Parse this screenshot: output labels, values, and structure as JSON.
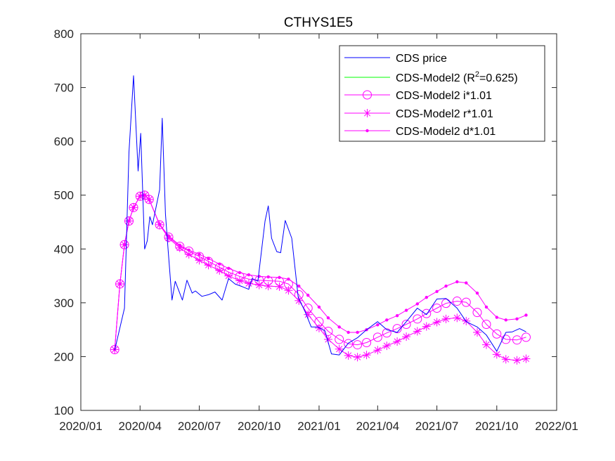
{
  "chart_data": {
    "type": "line",
    "title": "CTHYS1E5",
    "xlabel": "",
    "ylabel": "",
    "x_tick_labels": [
      "2020/01",
      "2020/04",
      "2020/07",
      "2020/10",
      "2021/01",
      "2021/04",
      "2021/07",
      "2021/10",
      "2022/01"
    ],
    "y_tick_labels": [
      "100",
      "200",
      "300",
      "400",
      "500",
      "600",
      "700",
      "800"
    ],
    "ylim": [
      100,
      800
    ],
    "xlim": [
      "2020-01-01",
      "2022-01-01"
    ],
    "grid": false,
    "legend_position": "top-right",
    "colors": {
      "cds_price": "#0000ff",
      "model": "#00ff00",
      "variants": "#ff00ff"
    },
    "series": [
      {
        "key": "cds",
        "name": "CDS price",
        "marker": "none",
        "x": [
          "2020-02-22",
          "2020-03-08",
          "2020-03-15",
          "2020-03-22",
          "2020-03-29",
          "2020-04-02",
          "2020-04-08",
          "2020-04-12",
          "2020-04-16",
          "2020-04-20",
          "2020-04-26",
          "2020-05-01",
          "2020-05-05",
          "2020-05-10",
          "2020-05-14",
          "2020-05-20",
          "2020-05-25",
          "2020-06-05",
          "2020-06-12",
          "2020-06-20",
          "2020-06-25",
          "2020-07-05",
          "2020-07-15",
          "2020-07-25",
          "2020-08-05",
          "2020-08-15",
          "2020-08-25",
          "2020-09-05",
          "2020-09-15",
          "2020-09-20",
          "2020-09-29",
          "2020-10-10",
          "2020-10-15",
          "2020-10-20",
          "2020-10-28",
          "2020-11-03",
          "2020-11-10",
          "2020-11-20",
          "2020-11-30",
          "2020-12-10",
          "2020-12-20",
          "2020-12-30",
          "2021-01-10",
          "2021-01-20",
          "2021-02-01",
          "2021-02-15",
          "2021-03-01",
          "2021-03-15",
          "2021-04-01",
          "2021-04-15",
          "2021-05-01",
          "2021-05-15",
          "2021-06-01",
          "2021-06-15",
          "2021-07-01",
          "2021-07-15",
          "2021-08-01",
          "2021-08-15",
          "2021-09-01",
          "2021-09-15",
          "2021-10-01",
          "2021-10-15",
          "2021-10-25",
          "2021-11-05",
          "2021-11-15"
        ],
        "y": [
          212,
          290,
          580,
          722,
          545,
          615,
          400,
          415,
          460,
          445,
          480,
          510,
          643,
          465,
          400,
          305,
          340,
          305,
          342,
          318,
          322,
          312,
          315,
          320,
          305,
          345,
          335,
          330,
          325,
          345,
          340,
          452,
          480,
          420,
          395,
          393,
          453,
          420,
          310,
          285,
          255,
          255,
          248,
          205,
          203,
          225,
          235,
          250,
          265,
          250,
          245,
          265,
          290,
          278,
          307,
          308,
          290,
          265,
          255,
          240,
          210,
          245,
          246,
          252,
          246
        ]
      },
      {
        "key": "model",
        "name": "CDS-Model2 (R²=0.625)",
        "name_base": "CDS-Model2 (R",
        "name_sup": "2",
        "name_tail": "=0.625)",
        "marker": "none",
        "x": [],
        "y": []
      },
      {
        "key": "i",
        "name": "CDS-Model2 i*1.01",
        "marker": "circle",
        "x": [
          "2020-02-22",
          "2020-03-01",
          "2020-03-08",
          "2020-03-15",
          "2020-03-22",
          "2020-04-01",
          "2020-04-08",
          "2020-04-15",
          "2020-05-01",
          "2020-05-15",
          "2020-06-01",
          "2020-06-15",
          "2020-07-01",
          "2020-07-15",
          "2020-08-01",
          "2020-08-15",
          "2020-09-01",
          "2020-09-15",
          "2020-10-01",
          "2020-10-15",
          "2020-11-01",
          "2020-11-15",
          "2020-12-01",
          "2020-12-15",
          "2021-01-01",
          "2021-01-15",
          "2021-02-01",
          "2021-02-15",
          "2021-03-01",
          "2021-03-15",
          "2021-04-01",
          "2021-04-15",
          "2021-05-01",
          "2021-05-15",
          "2021-06-01",
          "2021-06-15",
          "2021-07-01",
          "2021-07-15",
          "2021-08-01",
          "2021-08-15",
          "2021-09-01",
          "2021-09-15",
          "2021-10-01",
          "2021-10-15",
          "2021-11-01",
          "2021-11-15"
        ],
        "y": [
          213,
          335,
          408,
          452,
          477,
          498,
          500,
          492,
          445,
          422,
          405,
          396,
          386,
          377,
          366,
          357,
          349,
          344,
          342,
          341,
          340,
          335,
          315,
          290,
          265,
          247,
          232,
          224,
          222,
          226,
          236,
          244,
          252,
          260,
          270,
          280,
          290,
          299,
          303,
          301,
          282,
          260,
          242,
          232,
          231,
          236
        ]
      },
      {
        "key": "r",
        "name": "CDS-Model2 r*1.01",
        "marker": "star",
        "x": [
          "2020-02-22",
          "2020-03-01",
          "2020-03-08",
          "2020-03-15",
          "2020-03-22",
          "2020-04-01",
          "2020-04-08",
          "2020-04-15",
          "2020-05-01",
          "2020-05-15",
          "2020-06-01",
          "2020-06-15",
          "2020-07-01",
          "2020-07-15",
          "2020-08-01",
          "2020-08-15",
          "2020-09-01",
          "2020-09-15",
          "2020-10-01",
          "2020-10-15",
          "2020-11-01",
          "2020-11-15",
          "2020-12-01",
          "2020-12-15",
          "2021-01-01",
          "2021-01-15",
          "2021-02-01",
          "2021-02-15",
          "2021-03-01",
          "2021-03-15",
          "2021-04-01",
          "2021-04-15",
          "2021-05-01",
          "2021-05-15",
          "2021-06-01",
          "2021-06-15",
          "2021-07-01",
          "2021-07-15",
          "2021-08-01",
          "2021-08-15",
          "2021-09-01",
          "2021-09-15",
          "2021-10-01",
          "2021-10-15",
          "2021-11-01",
          "2021-11-15"
        ],
        "y": [
          213,
          335,
          408,
          452,
          477,
          498,
          500,
          492,
          445,
          420,
          402,
          390,
          379,
          370,
          360,
          350,
          341,
          336,
          333,
          331,
          330,
          323,
          304,
          278,
          253,
          232,
          214,
          202,
          199,
          203,
          212,
          220,
          228,
          237,
          247,
          256,
          264,
          270,
          272,
          266,
          245,
          222,
          204,
          195,
          193,
          196
        ]
      },
      {
        "key": "d",
        "name": "CDS-Model2 d*1.01",
        "marker": "dot",
        "x": [
          "2020-02-22",
          "2020-03-01",
          "2020-03-08",
          "2020-03-15",
          "2020-03-22",
          "2020-04-01",
          "2020-04-08",
          "2020-04-15",
          "2020-05-01",
          "2020-05-15",
          "2020-06-01",
          "2020-06-15",
          "2020-07-01",
          "2020-07-15",
          "2020-08-01",
          "2020-08-15",
          "2020-09-01",
          "2020-09-15",
          "2020-10-01",
          "2020-10-15",
          "2020-11-01",
          "2020-11-15",
          "2020-12-01",
          "2020-12-15",
          "2021-01-01",
          "2021-01-15",
          "2021-02-01",
          "2021-02-15",
          "2021-03-01",
          "2021-03-15",
          "2021-04-01",
          "2021-04-15",
          "2021-05-01",
          "2021-05-15",
          "2021-06-01",
          "2021-06-15",
          "2021-07-01",
          "2021-07-15",
          "2021-08-01",
          "2021-08-15",
          "2021-09-01",
          "2021-09-15",
          "2021-10-01",
          "2021-10-15",
          "2021-11-01",
          "2021-11-15"
        ],
        "y": [
          213,
          335,
          408,
          452,
          477,
          498,
          500,
          492,
          446,
          424,
          407,
          398,
          390,
          382,
          372,
          364,
          356,
          352,
          349,
          348,
          347,
          344,
          331,
          314,
          292,
          272,
          255,
          245,
          245,
          250,
          259,
          268,
          276,
          286,
          298,
          310,
          321,
          331,
          339,
          337,
          318,
          292,
          273,
          268,
          270,
          277
        ]
      }
    ]
  }
}
